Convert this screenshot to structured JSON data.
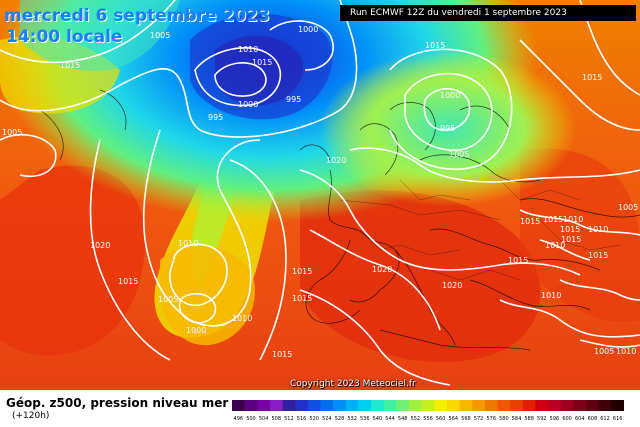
{
  "header": {
    "date": "mercredi 6 septembre 2023",
    "time": "14:00 locale",
    "run": "Run ECMWF 12Z du vendredi 1 septembre 2023"
  },
  "copyright": "Copyright 2023 Meteociel.fr",
  "footer": {
    "field": "Géop. z500, pression niveau mer",
    "lead": "(+120h)"
  },
  "colorbar": {
    "ticks": [
      "496",
      "500",
      "504",
      "508",
      "512",
      "516",
      "520",
      "524",
      "528",
      "532",
      "536",
      "540",
      "544",
      "548",
      "552",
      "556",
      "560",
      "564",
      "568",
      "572",
      "576",
      "580",
      "584",
      "588",
      "592",
      "596",
      "600",
      "604",
      "608",
      "612",
      "616"
    ],
    "colors": [
      "#3a0050",
      "#5a0080",
      "#7a00a8",
      "#8a1cc8",
      "#3020a0",
      "#2030c8",
      "#1050e0",
      "#0070f0",
      "#0090f8",
      "#00b0f8",
      "#00d0f0",
      "#20e8d0",
      "#40f0a0",
      "#70f070",
      "#a0f040",
      "#c8f020",
      "#f0f000",
      "#f8d800",
      "#f8b800",
      "#f89800",
      "#f07800",
      "#f05800",
      "#e84000",
      "#e02000",
      "#d00010",
      "#b80020",
      "#a00020",
      "#800018",
      "#600010",
      "#400008",
      "#200000"
    ]
  },
  "isobars": [
    {
      "label": "1005",
      "pos": "nw-atlantic"
    },
    {
      "label": "1010",
      "pos": "iceland"
    },
    {
      "label": "1015",
      "pos": "iceland-e"
    },
    {
      "label": "1000",
      "pos": "norway-w"
    },
    {
      "label": "1015",
      "pos": "atlantic-n"
    },
    {
      "label": "1015",
      "pos": "ne-canada"
    },
    {
      "label": "1005",
      "pos": "greenland-s"
    },
    {
      "label": "1000",
      "pos": "low-1"
    },
    {
      "label": "995",
      "pos": "low-1b"
    },
    {
      "label": "995",
      "pos": "low-1c"
    },
    {
      "label": "1015",
      "pos": "baltic"
    },
    {
      "label": "1000",
      "pos": "russia-low"
    },
    {
      "label": "995",
      "pos": "russia-low-c"
    },
    {
      "label": "1005",
      "pos": "russia-low-s"
    },
    {
      "label": "1015",
      "pos": "east"
    },
    {
      "label": "1020",
      "pos": "north-sea"
    },
    {
      "label": "1020",
      "pos": "atlantic-mid"
    },
    {
      "label": "1010",
      "pos": "atlantic-trough"
    },
    {
      "label": "1015",
      "pos": "azores-w"
    },
    {
      "label": "1005",
      "pos": "trough-low"
    },
    {
      "label": "1000",
      "pos": "trough-low-c"
    },
    {
      "label": "1010",
      "pos": "trough-e"
    },
    {
      "label": "1015",
      "pos": "iberia-w"
    },
    {
      "label": "1020",
      "pos": "france"
    },
    {
      "label": "1020",
      "pos": "italy"
    },
    {
      "label": "1015",
      "pos": "russia-s"
    },
    {
      "label": "1015",
      "pos": "black-sea"
    },
    {
      "label": "1010",
      "pos": "caspian-1"
    },
    {
      "label": "1015",
      "pos": "caspian-2"
    },
    {
      "label": "1015",
      "pos": "caspian-3"
    },
    {
      "label": "1010",
      "pos": "caspian-4"
    },
    {
      "label": "1015",
      "pos": "turkey-1"
    },
    {
      "label": "1015",
      "pos": "turkey-2"
    },
    {
      "label": "1010",
      "pos": "middle-east"
    },
    {
      "label": "1015",
      "pos": "africa"
    },
    {
      "label": "1010",
      "pos": "africa-e"
    },
    {
      "label": "1005",
      "pos": "se-corner"
    },
    {
      "label": "1010",
      "pos": "se-corner-2"
    },
    {
      "label": "1015",
      "pos": "iberia-s"
    },
    {
      "label": "1005",
      "pos": "far-east"
    }
  ]
}
